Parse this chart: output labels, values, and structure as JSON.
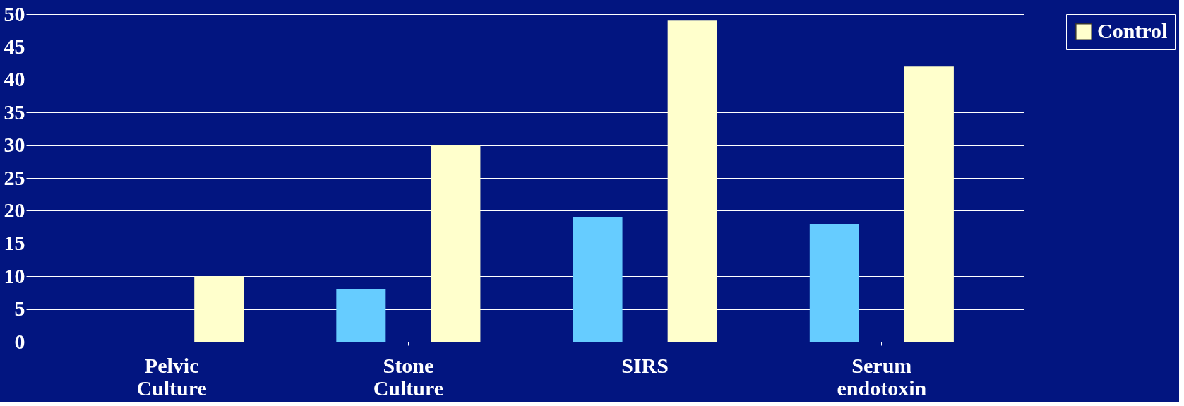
{
  "chart_data": {
    "type": "bar",
    "categories": [
      "Pelvic Culture",
      "Stone Culture",
      "SIRS",
      "Serum endotoxin"
    ],
    "series": [
      {
        "color": "#66ccff",
        "values": [
          0,
          8,
          19,
          18
        ]
      },
      {
        "name": "Control",
        "color": "#ffffcc",
        "values": [
          10,
          30,
          49,
          42
        ]
      }
    ],
    "ylim": [
      0,
      50
    ],
    "yticks": [
      0,
      5,
      10,
      15,
      20,
      25,
      30,
      35,
      40,
      45,
      50
    ],
    "grid": "y",
    "legend": "right"
  }
}
